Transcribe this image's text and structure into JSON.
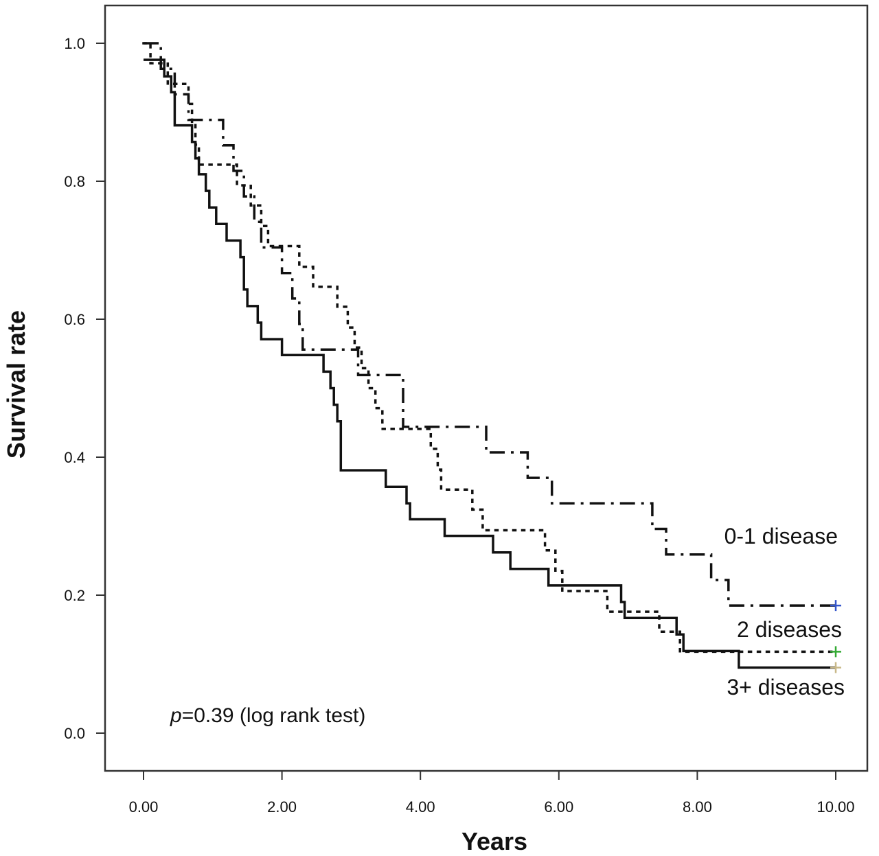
{
  "chart_data": {
    "type": "line",
    "subtype": "kaplan-meier step curve",
    "xlabel": "Years",
    "ylabel": "Survival rate",
    "xlim": [
      0,
      10
    ],
    "ylim": [
      0,
      1
    ],
    "x_ticks": [
      "0.00",
      "2.00",
      "4.00",
      "6.00",
      "8.00",
      "10.00"
    ],
    "y_ticks": [
      "0.0",
      "0.2",
      "0.4",
      "0.6",
      "0.8",
      "1.0"
    ],
    "grid": false,
    "annotation": {
      "italic": "p",
      "rest": "=0.39 (log rank test)"
    },
    "series": [
      {
        "name": "0-1 disease",
        "line_style": "dash-dot",
        "censor_color": "#3355cc",
        "points": [
          [
            0,
            1.0
          ],
          [
            0.25,
            1.0
          ],
          [
            0.25,
            0.963
          ],
          [
            0.45,
            0.963
          ],
          [
            0.45,
            0.926
          ],
          [
            0.65,
            0.926
          ],
          [
            0.65,
            0.889
          ],
          [
            1.15,
            0.889
          ],
          [
            1.15,
            0.852
          ],
          [
            1.3,
            0.852
          ],
          [
            1.3,
            0.815
          ],
          [
            1.45,
            0.815
          ],
          [
            1.45,
            0.778
          ],
          [
            1.6,
            0.778
          ],
          [
            1.6,
            0.741
          ],
          [
            1.7,
            0.741
          ],
          [
            1.7,
            0.704
          ],
          [
            2.0,
            0.704
          ],
          [
            2.0,
            0.667
          ],
          [
            2.15,
            0.667
          ],
          [
            2.15,
            0.63
          ],
          [
            2.25,
            0.63
          ],
          [
            2.25,
            0.593
          ],
          [
            2.3,
            0.593
          ],
          [
            2.3,
            0.556
          ],
          [
            3.1,
            0.556
          ],
          [
            3.1,
            0.519
          ],
          [
            3.75,
            0.519
          ],
          [
            3.75,
            0.444
          ],
          [
            4.95,
            0.444
          ],
          [
            4.95,
            0.407
          ],
          [
            5.55,
            0.407
          ],
          [
            5.55,
            0.37
          ],
          [
            5.9,
            0.37
          ],
          [
            5.9,
            0.333
          ],
          [
            7.35,
            0.333
          ],
          [
            7.35,
            0.296
          ],
          [
            7.55,
            0.296
          ],
          [
            7.55,
            0.259
          ],
          [
            8.2,
            0.259
          ],
          [
            8.2,
            0.222
          ],
          [
            8.45,
            0.222
          ],
          [
            8.45,
            0.185
          ],
          [
            10.0,
            0.185
          ]
        ]
      },
      {
        "name": "2 diseases",
        "line_style": "dotted",
        "censor_color": "#33aa33",
        "points": [
          [
            0,
            1.0
          ],
          [
            0.1,
            1.0
          ],
          [
            0.1,
            0.971
          ],
          [
            0.35,
            0.971
          ],
          [
            0.35,
            0.941
          ],
          [
            0.65,
            0.941
          ],
          [
            0.65,
            0.912
          ],
          [
            0.7,
            0.912
          ],
          [
            0.7,
            0.882
          ],
          [
            0.75,
            0.882
          ],
          [
            0.75,
            0.853
          ],
          [
            0.8,
            0.853
          ],
          [
            0.8,
            0.824
          ],
          [
            1.35,
            0.824
          ],
          [
            1.35,
            0.794
          ],
          [
            1.55,
            0.794
          ],
          [
            1.55,
            0.765
          ],
          [
            1.7,
            0.765
          ],
          [
            1.7,
            0.735
          ],
          [
            1.8,
            0.735
          ],
          [
            1.8,
            0.706
          ],
          [
            2.25,
            0.706
          ],
          [
            2.25,
            0.676
          ],
          [
            2.45,
            0.676
          ],
          [
            2.45,
            0.647
          ],
          [
            2.8,
            0.647
          ],
          [
            2.8,
            0.618
          ],
          [
            2.95,
            0.618
          ],
          [
            2.95,
            0.588
          ],
          [
            3.05,
            0.588
          ],
          [
            3.05,
            0.559
          ],
          [
            3.15,
            0.559
          ],
          [
            3.15,
            0.529
          ],
          [
            3.25,
            0.529
          ],
          [
            3.25,
            0.5
          ],
          [
            3.35,
            0.5
          ],
          [
            3.35,
            0.471
          ],
          [
            3.45,
            0.471
          ],
          [
            3.45,
            0.441
          ],
          [
            4.15,
            0.441
          ],
          [
            4.15,
            0.412
          ],
          [
            4.25,
            0.412
          ],
          [
            4.25,
            0.382
          ],
          [
            4.3,
            0.382
          ],
          [
            4.3,
            0.353
          ],
          [
            4.75,
            0.353
          ],
          [
            4.75,
            0.324
          ],
          [
            4.9,
            0.324
          ],
          [
            4.9,
            0.294
          ],
          [
            5.8,
            0.294
          ],
          [
            5.8,
            0.265
          ],
          [
            5.95,
            0.265
          ],
          [
            5.95,
            0.235
          ],
          [
            6.05,
            0.235
          ],
          [
            6.05,
            0.206
          ],
          [
            6.7,
            0.206
          ],
          [
            6.7,
            0.176
          ],
          [
            7.45,
            0.176
          ],
          [
            7.45,
            0.147
          ],
          [
            7.75,
            0.147
          ],
          [
            7.75,
            0.118
          ],
          [
            10.0,
            0.118
          ]
        ]
      },
      {
        "name": "3+ diseases",
        "line_style": "solid",
        "censor_color": "#c8b888",
        "points": [
          [
            0,
            0.976
          ],
          [
            0.3,
            0.976
          ],
          [
            0.3,
            0.952
          ],
          [
            0.4,
            0.952
          ],
          [
            0.4,
            0.929
          ],
          [
            0.45,
            0.929
          ],
          [
            0.45,
            0.881
          ],
          [
            0.7,
            0.881
          ],
          [
            0.7,
            0.857
          ],
          [
            0.75,
            0.857
          ],
          [
            0.75,
            0.833
          ],
          [
            0.8,
            0.833
          ],
          [
            0.8,
            0.81
          ],
          [
            0.9,
            0.81
          ],
          [
            0.9,
            0.786
          ],
          [
            0.95,
            0.786
          ],
          [
            0.95,
            0.762
          ],
          [
            1.05,
            0.762
          ],
          [
            1.05,
            0.738
          ],
          [
            1.2,
            0.738
          ],
          [
            1.2,
            0.714
          ],
          [
            1.4,
            0.714
          ],
          [
            1.4,
            0.69
          ],
          [
            1.45,
            0.69
          ],
          [
            1.45,
            0.643
          ],
          [
            1.5,
            0.643
          ],
          [
            1.5,
            0.619
          ],
          [
            1.65,
            0.619
          ],
          [
            1.65,
            0.595
          ],
          [
            1.7,
            0.595
          ],
          [
            1.7,
            0.571
          ],
          [
            2.0,
            0.571
          ],
          [
            2.0,
            0.548
          ],
          [
            2.6,
            0.548
          ],
          [
            2.6,
            0.524
          ],
          [
            2.7,
            0.524
          ],
          [
            2.7,
            0.5
          ],
          [
            2.75,
            0.5
          ],
          [
            2.75,
            0.476
          ],
          [
            2.8,
            0.476
          ],
          [
            2.8,
            0.452
          ],
          [
            2.85,
            0.452
          ],
          [
            2.85,
            0.381
          ],
          [
            3.5,
            0.381
          ],
          [
            3.5,
            0.357
          ],
          [
            3.8,
            0.357
          ],
          [
            3.8,
            0.333
          ],
          [
            3.85,
            0.333
          ],
          [
            3.85,
            0.31
          ],
          [
            4.35,
            0.31
          ],
          [
            4.35,
            0.286
          ],
          [
            5.05,
            0.286
          ],
          [
            5.05,
            0.262
          ],
          [
            5.3,
            0.262
          ],
          [
            5.3,
            0.238
          ],
          [
            5.85,
            0.238
          ],
          [
            5.85,
            0.214
          ],
          [
            6.9,
            0.214
          ],
          [
            6.9,
            0.19
          ],
          [
            6.95,
            0.19
          ],
          [
            6.95,
            0.167
          ],
          [
            7.7,
            0.167
          ],
          [
            7.7,
            0.143
          ],
          [
            7.8,
            0.143
          ],
          [
            7.8,
            0.119
          ],
          [
            8.6,
            0.119
          ],
          [
            8.6,
            0.095
          ],
          [
            10.0,
            0.095
          ]
        ]
      }
    ]
  }
}
